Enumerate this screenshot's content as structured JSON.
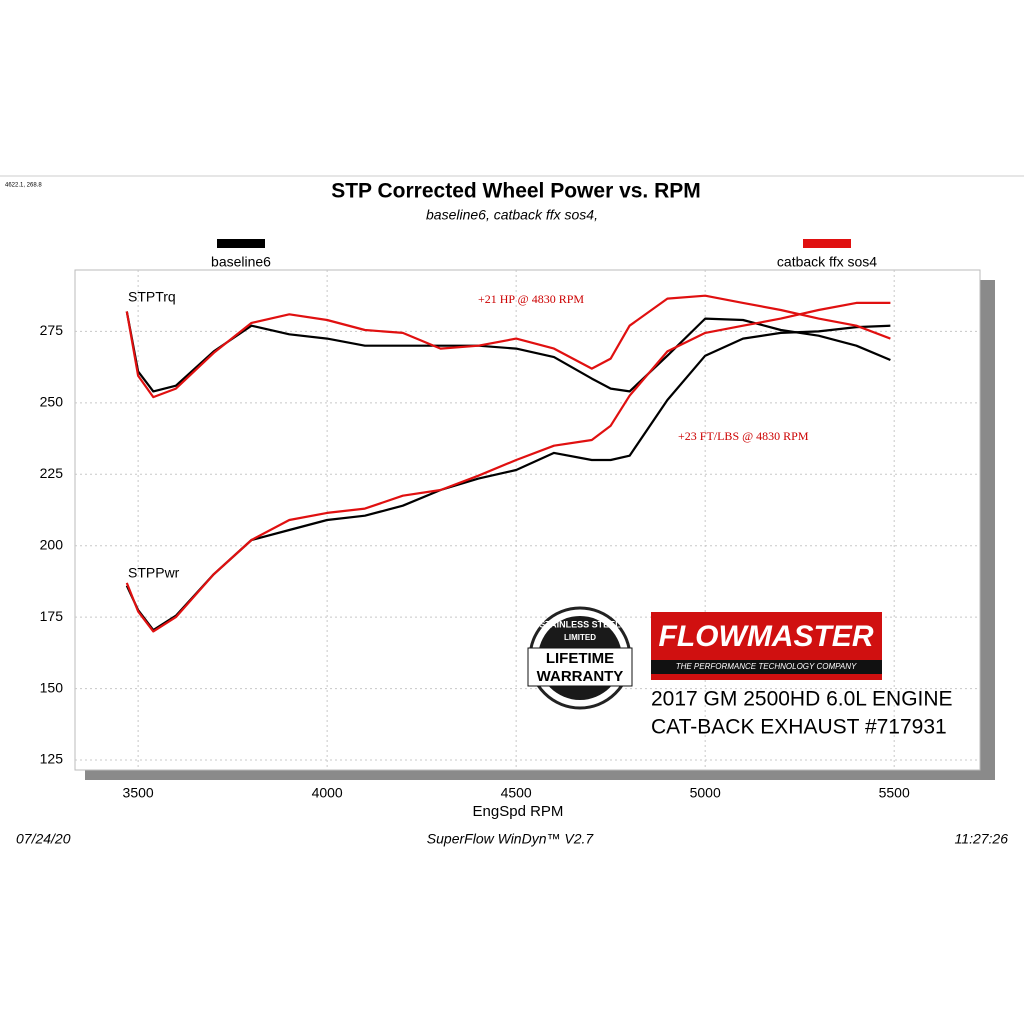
{
  "chart_data": {
    "type": "line",
    "corner_text": "4622.1, 268.8",
    "title": "STP Corrected Wheel Power vs. RPM",
    "subtitle": "baseline6, catback ffx sos4,",
    "x_label": "EngSpd  RPM",
    "torque_label": "STPTrq",
    "power_label": "STPPwr",
    "annotations": [
      "+21 HP @ 4830 RPM",
      "+23 FT/LBS @ 4830 RPM"
    ],
    "footer": {
      "date": "07/24/20",
      "software": "SuperFlow WinDyn™  V2.7",
      "time": "11:27:26"
    },
    "xlim": [
      3333,
      5727
    ],
    "ylim": [
      121.5,
      296.5
    ],
    "xticks": [
      3500,
      4000,
      4500,
      5000,
      5500
    ],
    "yticks": [
      125,
      150,
      175,
      200,
      225,
      250,
      275
    ],
    "grid": true,
    "x": [
      3470,
      3500,
      3540,
      3600,
      3700,
      3800,
      3900,
      4000,
      4100,
      4200,
      4300,
      4400,
      4500,
      4600,
      4700,
      4750,
      4800,
      4900,
      5000,
      5100,
      5200,
      5300,
      5400,
      5490
    ],
    "series": [
      {
        "name": "baseline6",
        "color": "#000000",
        "torque": [
          282,
          261,
          254,
          256,
          268,
          277,
          274,
          272.5,
          270,
          270,
          270,
          270,
          269,
          266,
          258.5,
          255,
          254,
          266.5,
          279.5,
          279,
          275.5,
          273.5,
          270,
          265
        ],
        "power": [
          186,
          177.5,
          170.5,
          175.5,
          190,
          202,
          205.5,
          209,
          210.5,
          214,
          219.5,
          223.5,
          226.5,
          232.5,
          230,
          230,
          231.5,
          251,
          266.5,
          272.5,
          274.5,
          275,
          276.5,
          277
        ]
      },
      {
        "name": "catback ffx sos4",
        "color": "#e01010",
        "torque": [
          282,
          259.5,
          252,
          255,
          267.5,
          278,
          281,
          279,
          275.5,
          274.5,
          269,
          270,
          272.5,
          269,
          262,
          265.5,
          277,
          286.5,
          287.5,
          285,
          282.5,
          279.5,
          277,
          272.5
        ],
        "power": [
          187,
          177,
          170,
          175,
          190,
          202,
          209,
          211.5,
          213,
          217.5,
          219.5,
          224.5,
          230,
          235,
          237,
          242,
          252.5,
          268,
          274.5,
          277,
          279.5,
          282.5,
          285,
          285
        ]
      }
    ],
    "badge": {
      "top": "STAINLESS STEEL",
      "middle": "LIMITED",
      "line1": "LIFETIME",
      "line2": "WARRANTY"
    },
    "brand": {
      "name": "FLOWMASTER",
      "tagline": "THE PERFORMANCE TECHNOLOGY COMPANY"
    },
    "caption": [
      "2017 GM 2500HD 6.0L ENGINE",
      "CAT-BACK EXHAUST #717931"
    ]
  }
}
